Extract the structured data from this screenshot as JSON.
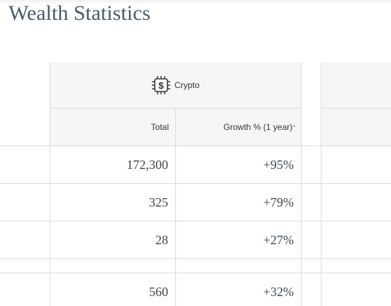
{
  "page": {
    "title": "Wealth Statistics"
  },
  "table": {
    "group_label": "Crypto",
    "group_icon": "crypto-chip-dollar-icon",
    "columns": {
      "total": "Total",
      "growth": "Growth % (1 year)",
      "growth_marker": "*"
    },
    "rows": [
      {
        "total": "172,300",
        "growth": "+95%"
      },
      {
        "total": "325",
        "growth": "+79%"
      },
      {
        "total": "28",
        "growth": "+27%"
      },
      {
        "total": "",
        "growth": ""
      },
      {
        "total": "560",
        "growth": "+32%"
      }
    ]
  }
}
